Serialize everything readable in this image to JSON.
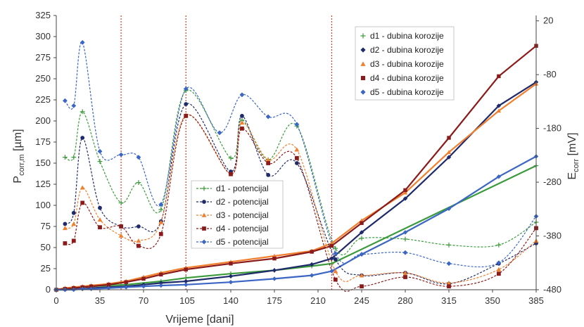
{
  "chart_data": {
    "type": "line",
    "xlabel": "Vrijeme [dani]",
    "ylabel_left": "P",
    "ylabel_left_sub": "corr,m",
    "ylabel_left_unit": " [µm]",
    "ylabel_right": "E",
    "ylabel_right_sub": "corr",
    "ylabel_right_unit": " [mV]",
    "x_ticks": [
      0,
      35,
      70,
      105,
      140,
      175,
      210,
      245,
      280,
      315,
      350,
      385
    ],
    "xlim": [
      0,
      385
    ],
    "ylim_left": [
      0,
      325
    ],
    "y_left_ticks": [
      0,
      25,
      50,
      75,
      100,
      125,
      150,
      175,
      200,
      225,
      250,
      275,
      300,
      325
    ],
    "ylim_right": [
      -480,
      30
    ],
    "y_right_ticks": [
      20,
      -80,
      -180,
      -280,
      -380,
      -480
    ],
    "vertical_reference_lines": [
      52,
      104,
      221
    ],
    "grid": false,
    "legend_depth_position": "top-right",
    "legend_potential_position": "center",
    "depth_series": [
      {
        "name": "d1 - dubina korozije",
        "color": "#3b9a3b",
        "marker": "plus",
        "x": [
          0,
          7,
          14,
          21,
          28,
          42,
          56,
          84,
          104,
          140,
          175,
          205,
          221,
          385
        ],
        "y": [
          0,
          1,
          2,
          3,
          4,
          5,
          6,
          10,
          14,
          19,
          23,
          28,
          31,
          147
        ]
      },
      {
        "name": "d2 - dubina korozije",
        "color": "#1f2a6b",
        "marker": "diamond",
        "x": [
          0,
          7,
          14,
          21,
          28,
          42,
          56,
          70,
          84,
          104,
          140,
          175,
          205,
          221,
          245,
          280,
          315,
          355,
          385
        ],
        "y": [
          0,
          0,
          1,
          1,
          2,
          3,
          4,
          6,
          8,
          10,
          16,
          23,
          30,
          37,
          68,
          108,
          157,
          218,
          246
        ]
      },
      {
        "name": "d3 - dubina korozije",
        "color": "#f07f2e",
        "marker": "triangle",
        "x": [
          0,
          7,
          14,
          21,
          28,
          42,
          56,
          70,
          84,
          104,
          140,
          175,
          205,
          221,
          245,
          280,
          315,
          355,
          385
        ],
        "y": [
          0,
          2,
          3,
          4,
          5,
          7,
          10,
          15,
          20,
          26,
          33,
          40,
          46,
          55,
          82,
          115,
          163,
          212,
          244
        ]
      },
      {
        "name": "d4 - dubina korozije",
        "color": "#8b1a1a",
        "marker": "square",
        "x": [
          0,
          7,
          14,
          21,
          28,
          42,
          56,
          70,
          84,
          104,
          140,
          175,
          205,
          221,
          245,
          280,
          315,
          355,
          385
        ],
        "y": [
          0,
          1,
          2,
          3,
          4,
          6,
          9,
          13,
          18,
          24,
          31,
          37,
          45,
          52,
          79,
          118,
          180,
          253,
          289
        ]
      },
      {
        "name": "d5 - dubina korozije",
        "color": "#3b66c4",
        "marker": "diamond",
        "x": [
          0,
          7,
          14,
          21,
          28,
          42,
          56,
          70,
          84,
          104,
          140,
          175,
          205,
          221,
          245,
          280,
          315,
          355,
          385
        ],
        "y": [
          0,
          0,
          0,
          1,
          1,
          2,
          3,
          4,
          5,
          6,
          9,
          13,
          17,
          22,
          42,
          68,
          96,
          134,
          158
        ]
      }
    ],
    "potential_series": [
      {
        "name": "d1 - potencijal",
        "color": "#3b9a3b",
        "marker": "plus",
        "x": [
          7,
          14,
          21,
          35,
          52,
          66,
          84,
          104,
          140,
          149,
          170,
          193,
          224,
          245,
          280,
          315,
          355,
          385
        ],
        "y": [
          157,
          157,
          211,
          152,
          103,
          127,
          95,
          236,
          156,
          201,
          154,
          194,
          49,
          61,
          60,
          53,
          53,
          80
        ]
      },
      {
        "name": "d2 - potencijal",
        "color": "#1f2a6b",
        "marker": "circle",
        "x": [
          7,
          14,
          21,
          35,
          52,
          66,
          84,
          104,
          140,
          149,
          170,
          193,
          224,
          245,
          280,
          315,
          355,
          385
        ],
        "y": [
          78,
          91,
          180,
          97,
          75,
          75,
          81,
          220,
          140,
          206,
          136,
          150,
          36,
          17,
          20,
          7,
          31,
          55
        ]
      },
      {
        "name": "d3 - potencijal",
        "color": "#f07f2e",
        "marker": "triangle",
        "x": [
          7,
          14,
          21,
          35,
          52,
          66,
          84,
          104,
          140,
          149,
          170,
          193,
          224,
          245,
          280,
          315,
          355,
          385
        ],
        "y": [
          73,
          78,
          121,
          83,
          64,
          58,
          80,
          207,
          137,
          198,
          154,
          166,
          22,
          17,
          20,
          8,
          24,
          58
        ]
      },
      {
        "name": "d4 - potencijal",
        "color": "#8b1a1a",
        "marker": "square",
        "x": [
          7,
          14,
          21,
          35,
          52,
          66,
          84,
          104,
          140,
          149,
          170,
          193,
          224,
          245,
          280,
          315,
          355,
          385
        ],
        "y": [
          55,
          58,
          103,
          74,
          75,
          52,
          66,
          206,
          137,
          191,
          150,
          156,
          12,
          4,
          15,
          4,
          19,
          73
        ]
      },
      {
        "name": "d5 - potencijal",
        "color": "#3b66c4",
        "marker": "diamond",
        "x": [
          7,
          14,
          21,
          35,
          52,
          66,
          84,
          104,
          131,
          149,
          170,
          193,
          224,
          245,
          280,
          315,
          355,
          385
        ],
        "y": [
          224,
          218,
          293,
          164,
          160,
          157,
          101,
          238,
          186,
          231,
          205,
          196,
          43,
          42,
          44,
          31,
          32,
          87
        ]
      }
    ]
  }
}
